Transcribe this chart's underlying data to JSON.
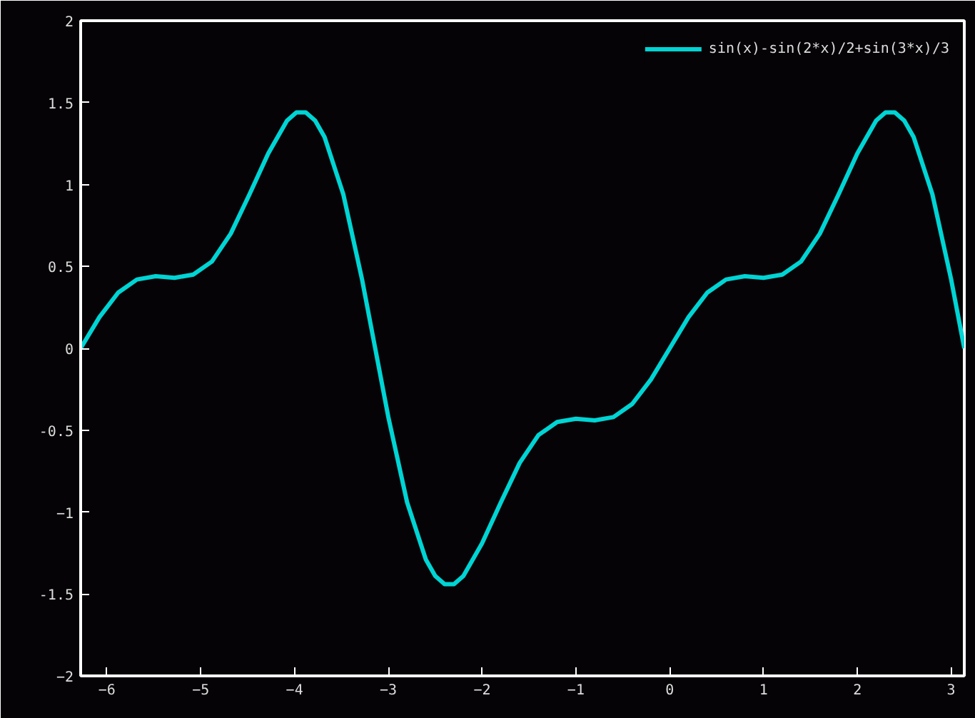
{
  "chart_data": {
    "type": "line",
    "xlim": [
      -6.28,
      3.14
    ],
    "ylim": [
      -2,
      2
    ],
    "xticks": [
      -6,
      -5,
      -4,
      -3,
      -2,
      -1,
      0,
      1,
      2,
      3
    ],
    "yticks": [
      -2,
      {
        "value": -1.5,
        "label": "-1.5"
      },
      -1,
      {
        "value": -0.5,
        "label": "-0.5"
      },
      0,
      {
        "value": 0.5,
        "label": "0.5"
      },
      1,
      {
        "value": 1.5,
        "label": "1.5"
      },
      2
    ],
    "grid": false,
    "legend": "top right",
    "marker": "none",
    "line_style": "solid",
    "series": [
      {
        "name": "sin(x)-sin(2*x)/2+sin(3*x)/3",
        "color": "#00d4d4",
        "x": [
          -6.28,
          -6.08,
          -5.88,
          -5.68,
          -5.48,
          -5.28,
          -5.08,
          -4.88,
          -4.68,
          -4.48,
          -4.28,
          -4.08,
          -3.98,
          -3.88,
          -3.78,
          -3.68,
          -3.48,
          -3.28,
          -3.14,
          -3.0,
          -2.8,
          -2.6,
          -2.5,
          -2.4,
          -2.3,
          -2.2,
          -2.0,
          -1.8,
          -1.6,
          -1.4,
          -1.2,
          -1.0,
          -0.8,
          -0.6,
          -0.4,
          -0.2,
          0,
          0.2,
          0.4,
          0.6,
          0.8,
          1.0,
          1.2,
          1.4,
          1.6,
          1.8,
          2.0,
          2.2,
          2.3,
          2.4,
          2.5,
          2.6,
          2.8,
          3.0,
          3.14
        ],
        "values": [
          0,
          0.19,
          0.34,
          0.42,
          0.44,
          0.43,
          0.45,
          0.53,
          0.7,
          0.94,
          1.19,
          1.39,
          1.44,
          1.44,
          1.39,
          1.29,
          0.94,
          0.42,
          0,
          -0.42,
          -0.94,
          -1.29,
          -1.39,
          -1.44,
          -1.44,
          -1.39,
          -1.19,
          -0.94,
          -0.7,
          -0.53,
          -0.45,
          -0.43,
          -0.44,
          -0.42,
          -0.34,
          -0.19,
          0,
          0.19,
          0.34,
          0.42,
          0.44,
          0.43,
          0.45,
          0.53,
          0.7,
          0.94,
          1.19,
          1.39,
          1.44,
          1.44,
          1.39,
          1.29,
          0.94,
          0.42,
          0
        ]
      }
    ]
  }
}
